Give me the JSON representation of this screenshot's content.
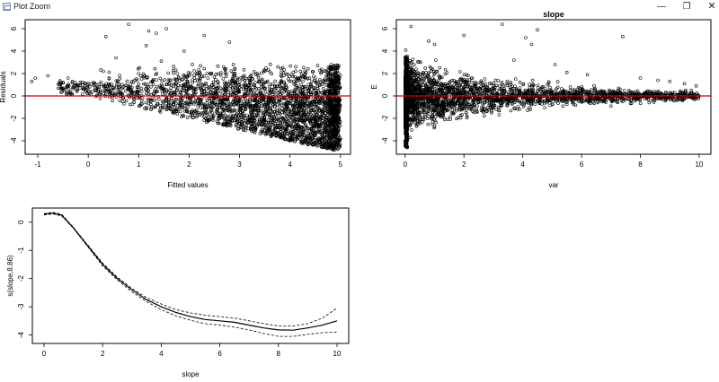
{
  "window": {
    "title": "Plot Zoom",
    "min_label": "—",
    "max_label": "❐",
    "close_label": "✕",
    "app_icon": "plot-window-icon"
  },
  "colors": {
    "ref_line": "#dd0000",
    "ink": "#000000"
  },
  "chart_data": [
    {
      "type": "scatter",
      "title": "",
      "xlabel": "Fitted values",
      "ylabel": "Residuals",
      "xlim": [
        -1.25,
        5.2
      ],
      "ylim": [
        -5.2,
        6.8
      ],
      "xticks": [
        -1,
        0,
        1,
        2,
        3,
        4,
        5
      ],
      "yticks": [
        -4,
        -2,
        0,
        2,
        4,
        6
      ],
      "hline": 0,
      "note": "dense cloud; lower boundary follows residual = -fitted",
      "outliers": [
        [
          -1.12,
          1.3
        ],
        [
          -1.05,
          1.6
        ],
        [
          -0.8,
          1.8
        ],
        [
          -0.55,
          1.0
        ],
        [
          -0.4,
          1.6
        ],
        [
          -0.3,
          0.8
        ],
        [
          -0.2,
          0.9
        ],
        [
          -0.1,
          0.6
        ],
        [
          0.1,
          1.2
        ],
        [
          0.3,
          2.2
        ],
        [
          0.35,
          5.3
        ],
        [
          0.55,
          3.4
        ],
        [
          0.8,
          6.4
        ],
        [
          1.15,
          4.5
        ],
        [
          1.2,
          5.8
        ],
        [
          1.35,
          5.6
        ],
        [
          1.55,
          6.0
        ],
        [
          1.9,
          4.0
        ],
        [
          2.3,
          5.4
        ],
        [
          1.45,
          3.1
        ],
        [
          2.8,
          4.8
        ]
      ]
    },
    {
      "type": "scatter",
      "title": "slope",
      "xlabel": "var",
      "ylabel": "E",
      "xlim": [
        -0.3,
        10.4
      ],
      "ylim": [
        -5.2,
        6.8
      ],
      "xticks": [
        0,
        2,
        4,
        6,
        8,
        10
      ],
      "yticks": [
        -4,
        -2,
        0,
        2,
        4,
        6
      ],
      "hline": 0,
      "note": "dense near var = 0, spread narrows as var grows",
      "outliers": [
        [
          0.2,
          6.2
        ],
        [
          0.8,
          4.9
        ],
        [
          1.0,
          4.6
        ],
        [
          2.0,
          5.4
        ],
        [
          3.3,
          6.4
        ],
        [
          3.7,
          3.2
        ],
        [
          4.1,
          5.2
        ],
        [
          4.3,
          4.6
        ],
        [
          4.5,
          5.9
        ],
        [
          5.1,
          2.8
        ],
        [
          5.5,
          2.1
        ],
        [
          6.2,
          1.9
        ],
        [
          7.4,
          5.3
        ],
        [
          8.0,
          1.6
        ],
        [
          8.6,
          1.4
        ],
        [
          9.0,
          1.3
        ],
        [
          9.5,
          1.1
        ],
        [
          9.9,
          0.9
        ],
        [
          7.0,
          -0.9
        ],
        [
          8.3,
          -0.6
        ]
      ]
    },
    {
      "type": "line",
      "title": "",
      "xlabel": "slope",
      "ylabel": "s(slope,8.86)",
      "xlim": [
        -0.4,
        10.4
      ],
      "ylim": [
        -4.3,
        0.5
      ],
      "xticks": [
        0,
        2,
        4,
        6,
        8,
        10
      ],
      "yticks": [
        -4,
        -3,
        -2,
        -1,
        0
      ],
      "x": [
        0,
        0.3,
        0.6,
        1,
        1.5,
        2,
        2.5,
        3,
        3.5,
        4,
        4.5,
        5,
        5.5,
        6,
        6.5,
        7,
        7.5,
        8,
        8.5,
        9,
        9.5,
        10
      ],
      "series": [
        {
          "values": [
            0.28,
            0.32,
            0.25,
            -0.2,
            -0.85,
            -1.5,
            -2.0,
            -2.4,
            -2.75,
            -3.0,
            -3.2,
            -3.35,
            -3.45,
            -3.5,
            -3.55,
            -3.65,
            -3.75,
            -3.82,
            -3.83,
            -3.75,
            -3.65,
            -3.5
          ]
        },
        {
          "values": [
            0.3,
            0.35,
            0.28,
            -0.18,
            -0.82,
            -1.45,
            -1.95,
            -2.35,
            -2.68,
            -2.9,
            -3.1,
            -3.22,
            -3.3,
            -3.35,
            -3.4,
            -3.5,
            -3.6,
            -3.68,
            -3.68,
            -3.6,
            -3.4,
            -3.05
          ]
        },
        {
          "values": [
            0.26,
            0.29,
            0.22,
            -0.22,
            -0.88,
            -1.55,
            -2.05,
            -2.47,
            -2.82,
            -3.1,
            -3.32,
            -3.48,
            -3.6,
            -3.65,
            -3.72,
            -3.82,
            -3.95,
            -4.05,
            -4.05,
            -3.98,
            -3.92,
            -3.9
          ]
        }
      ]
    }
  ]
}
